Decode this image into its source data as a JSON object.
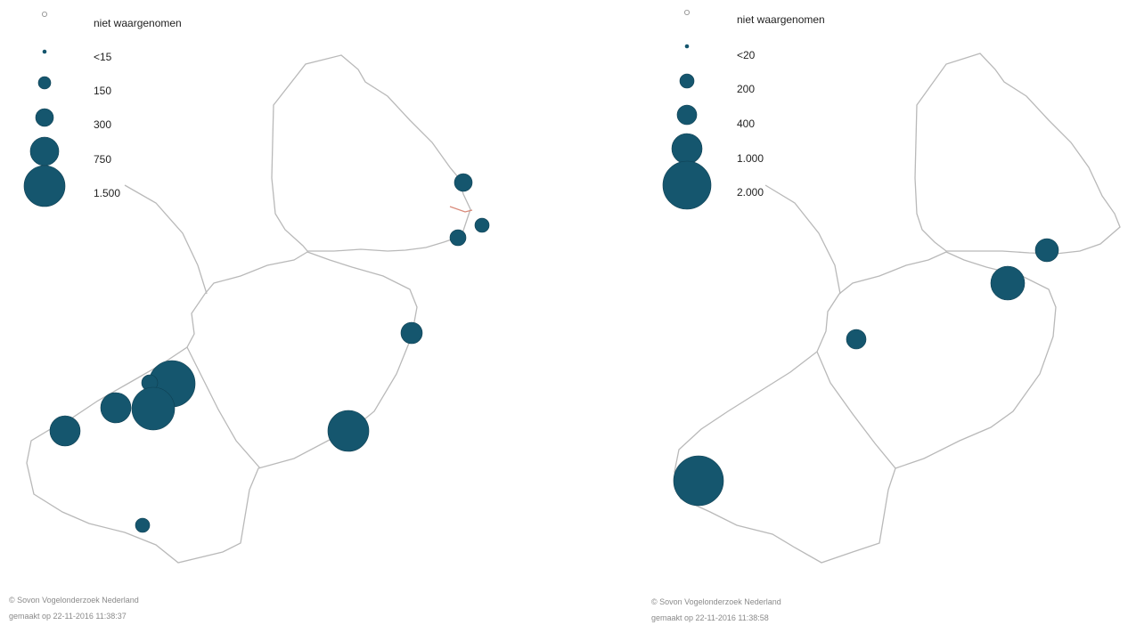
{
  "colors": {
    "marker_fill": "#15566e",
    "marker_stroke": "#0e3f52",
    "outline": "#b9b9b9",
    "credit_text": "#8a8a8a"
  },
  "maps": [
    {
      "legend": [
        {
          "label": "niet waargenomen",
          "symbol": "open-circle"
        },
        {
          "label": "<15",
          "symbol": "dot"
        },
        {
          "label": "150",
          "symbol": "circle"
        },
        {
          "label": "300",
          "symbol": "circle"
        },
        {
          "label": "750",
          "symbol": "circle"
        },
        {
          "label": "1.500",
          "symbol": "circle"
        }
      ],
      "credit": "© Sovon Vogelonderzoek Nederland",
      "timestamp": "gemaakt op 22-11-2016 11:38:37"
    },
    {
      "legend": [
        {
          "label": "niet waargenomen",
          "symbol": "open-circle"
        },
        {
          "label": "<20",
          "symbol": "dot"
        },
        {
          "label": "200",
          "symbol": "circle"
        },
        {
          "label": "400",
          "symbol": "circle"
        },
        {
          "label": "1.000",
          "symbol": "circle"
        },
        {
          "label": "2.000",
          "symbol": "circle"
        }
      ],
      "credit": "© Sovon Vogelonderzoek Nederland",
      "timestamp": "gemaakt op 22-11-2016 11:38:58"
    }
  ]
}
